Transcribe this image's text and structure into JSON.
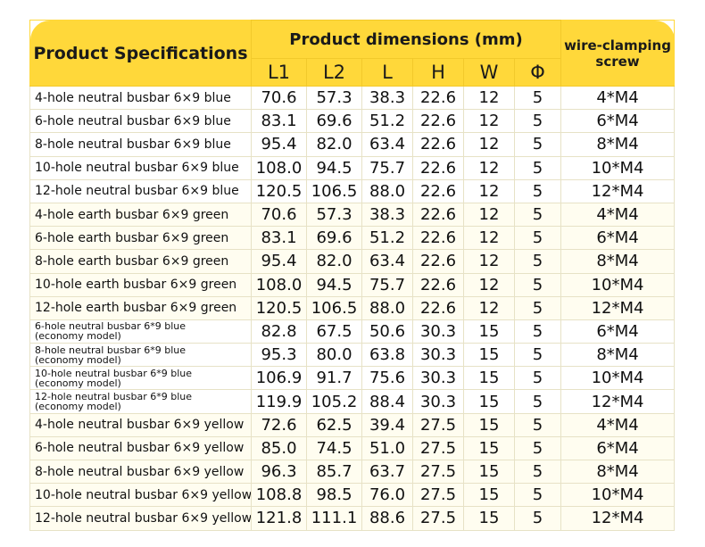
{
  "header": {
    "product_label": "Product Specifications",
    "dims_label": "Product dimensions (mm)",
    "screw_label": "wire-clamping screw",
    "columns": [
      "L1",
      "L2",
      "L",
      "H",
      "W",
      "Φ"
    ]
  },
  "rows": [
    {
      "group": "blue",
      "name": "4-hole neutral busbar 6×9 blue",
      "note": "",
      "L1": "70.6",
      "L2": "57.3",
      "L": "38.3",
      "H": "22.6",
      "W": "12",
      "phi": "5",
      "screw": "4*M4"
    },
    {
      "group": "blue",
      "name": "6-hole neutral busbar 6×9 blue",
      "note": "",
      "L1": "83.1",
      "L2": "69.6",
      "L": "51.2",
      "H": "22.6",
      "W": "12",
      "phi": "5",
      "screw": "6*M4"
    },
    {
      "group": "blue",
      "name": "8-hole neutral busbar 6×9 blue",
      "note": "",
      "L1": "95.4",
      "L2": "82.0",
      "L": "63.4",
      "H": "22.6",
      "W": "12",
      "phi": "5",
      "screw": "8*M4"
    },
    {
      "group": "blue",
      "name": "10-hole neutral busbar 6×9 blue",
      "note": "",
      "L1": "108.0",
      "L2": "94.5",
      "L": "75.7",
      "H": "22.6",
      "W": "12",
      "phi": "5",
      "screw": "10*M4"
    },
    {
      "group": "blue",
      "name": "12-hole neutral busbar 6×9 blue",
      "note": "",
      "L1": "120.5",
      "L2": "106.5",
      "L": "88.0",
      "H": "22.6",
      "W": "12",
      "phi": "5",
      "screw": "12*M4"
    },
    {
      "group": "green",
      "name": "4-hole earth busbar 6×9 green",
      "note": "",
      "L1": "70.6",
      "L2": "57.3",
      "L": "38.3",
      "H": "22.6",
      "W": "12",
      "phi": "5",
      "screw": "4*M4"
    },
    {
      "group": "green",
      "name": "6-hole earth busbar 6×9 green",
      "note": "",
      "L1": "83.1",
      "L2": "69.6",
      "L": "51.2",
      "H": "22.6",
      "W": "12",
      "phi": "5",
      "screw": "6*M4"
    },
    {
      "group": "green",
      "name": "8-hole earth busbar 6×9 green",
      "note": "",
      "L1": "95.4",
      "L2": "82.0",
      "L": "63.4",
      "H": "22.6",
      "W": "12",
      "phi": "5",
      "screw": "8*M4"
    },
    {
      "group": "green",
      "name": "10-hole earth busbar 6×9 green",
      "note": "",
      "L1": "108.0",
      "L2": "94.5",
      "L": "75.7",
      "H": "22.6",
      "W": "12",
      "phi": "5",
      "screw": "10*M4"
    },
    {
      "group": "green",
      "name": "12-hole earth busbar 6×9 green",
      "note": "",
      "L1": "120.5",
      "L2": "106.5",
      "L": "88.0",
      "H": "22.6",
      "W": "12",
      "phi": "5",
      "screw": "12*M4"
    },
    {
      "group": "eco-row",
      "name": "6-hole neutral busbar 6*9 blue",
      "note": "(economy model)",
      "L1": "82.8",
      "L2": "67.5",
      "L": "50.6",
      "H": "30.3",
      "W": "15",
      "phi": "5",
      "screw": "6*M4"
    },
    {
      "group": "eco-row",
      "name": "8-hole neutral busbar 6*9 blue",
      "note": "(economy model)",
      "L1": "95.3",
      "L2": "80.0",
      "L": "63.8",
      "H": "30.3",
      "W": "15",
      "phi": "5",
      "screw": "8*M4"
    },
    {
      "group": "eco-row",
      "name": "10-hole neutral busbar 6*9 blue",
      "note": "(economy model)",
      "L1": "106.9",
      "L2": "91.7",
      "L": "75.6",
      "H": "30.3",
      "W": "15",
      "phi": "5",
      "screw": "10*M4"
    },
    {
      "group": "eco-row",
      "name": "12-hole neutral busbar 6*9 blue",
      "note": "(economy model)",
      "L1": "119.9",
      "L2": "105.2",
      "L": "88.4",
      "H": "30.3",
      "W": "15",
      "phi": "5",
      "screw": "12*M4"
    },
    {
      "group": "yellow",
      "name": "4-hole neutral busbar 6×9 yellow",
      "note": "",
      "L1": "72.6",
      "L2": "62.5",
      "L": "39.4",
      "H": "27.5",
      "W": "15",
      "phi": "5",
      "screw": "4*M4"
    },
    {
      "group": "yellow",
      "name": "6-hole neutral busbar 6×9 yellow",
      "note": "",
      "L1": "85.0",
      "L2": "74.5",
      "L": "51.0",
      "H": "27.5",
      "W": "15",
      "phi": "5",
      "screw": "6*M4"
    },
    {
      "group": "yellow",
      "name": "8-hole neutral busbar 6×9 yellow",
      "note": "",
      "L1": "96.3",
      "L2": "85.7",
      "L": "63.7",
      "H": "27.5",
      "W": "15",
      "phi": "5",
      "screw": "8*M4"
    },
    {
      "group": "yellow",
      "name": "10-hole neutral busbar 6×9 yellow",
      "note": "",
      "L1": "108.8",
      "L2": "98.5",
      "L": "76.0",
      "H": "27.5",
      "W": "15",
      "phi": "5",
      "screw": "10*M4"
    },
    {
      "group": "yellow",
      "name": "12-hole neutral busbar 6×9 yellow",
      "note": "",
      "L1": "121.8",
      "L2": "111.1",
      "L": "88.6",
      "H": "27.5",
      "W": "15",
      "phi": "5",
      "screw": "12*M4"
    }
  ],
  "colors": {
    "header_bg": "#ffd83a",
    "grid": "#e7e2c6",
    "text": "#111111"
  }
}
